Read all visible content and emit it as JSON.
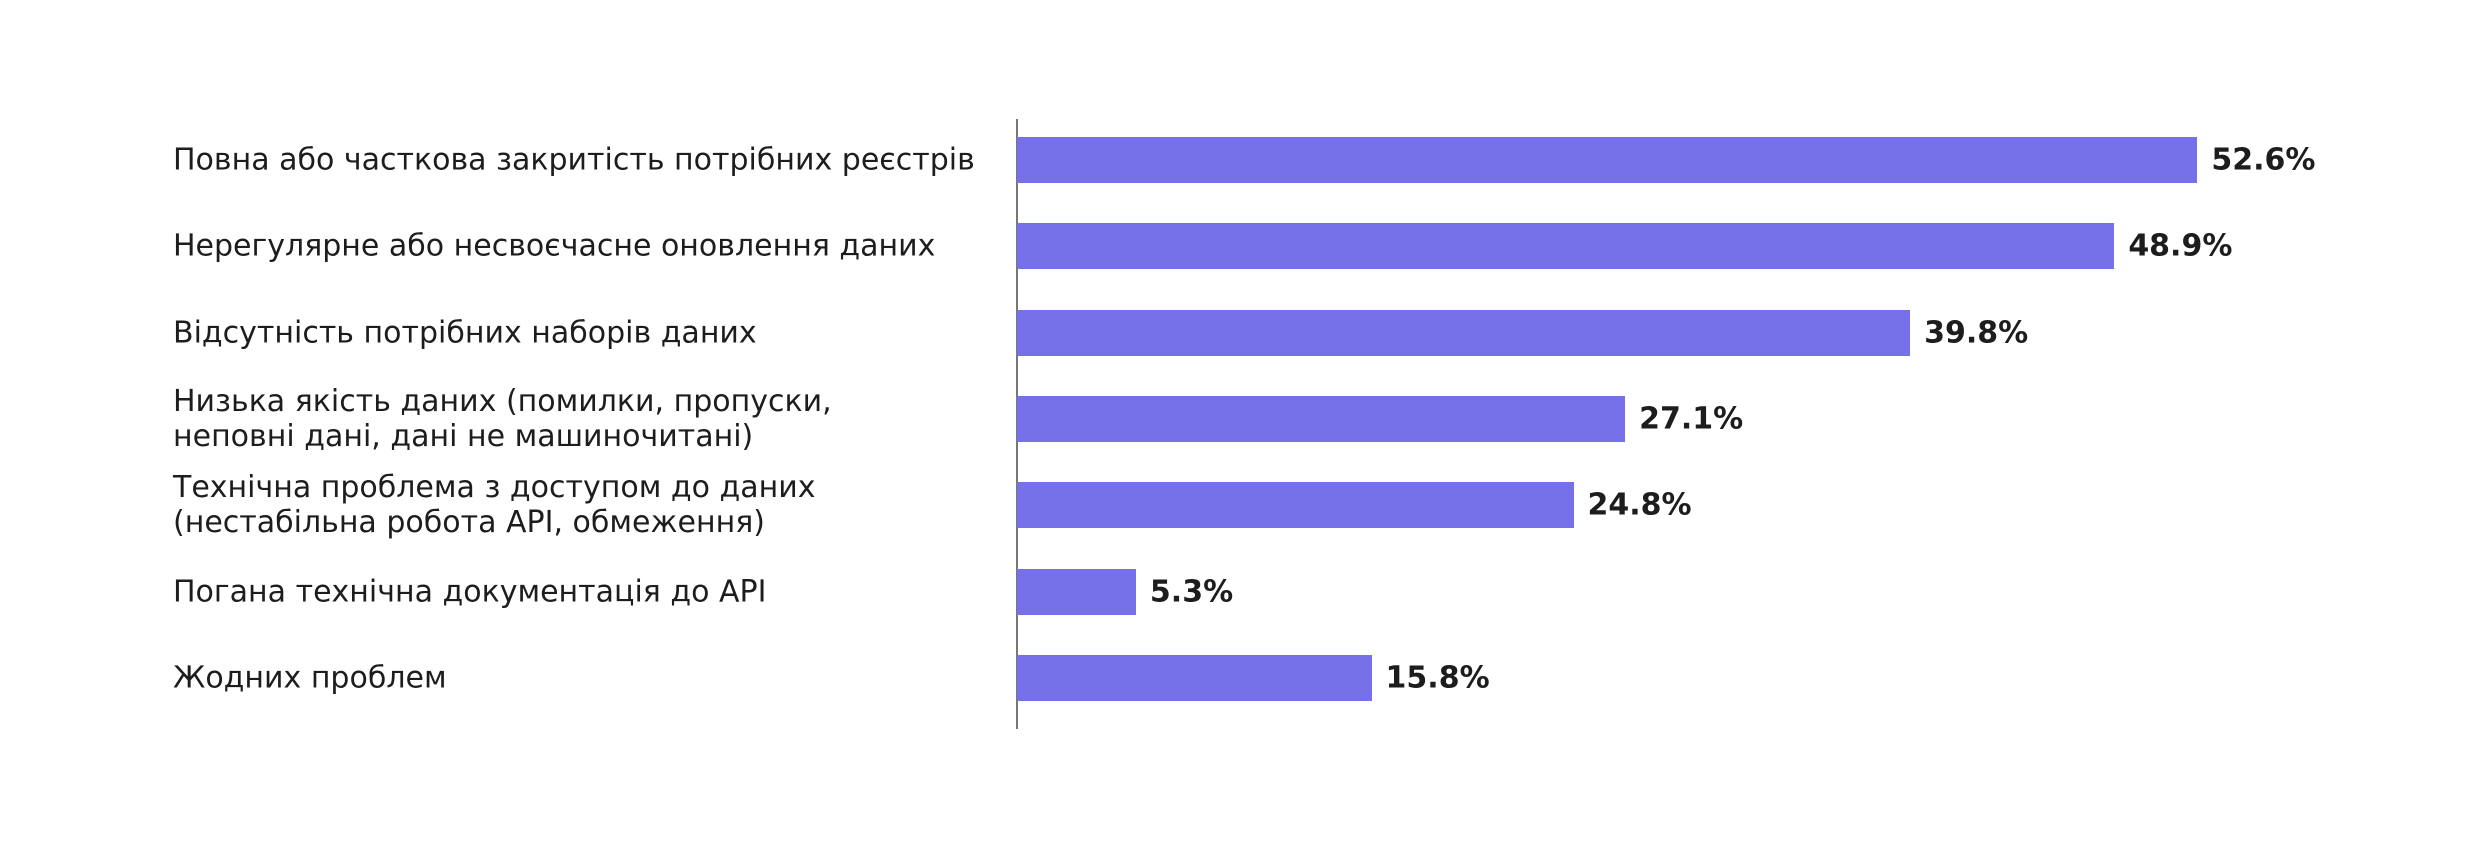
{
  "chart_data": {
    "type": "bar",
    "orientation": "horizontal",
    "color": "#7771e9",
    "categories": [
      "Повна або часткова закритість потрібних реєстрів",
      "Нерегулярне або несвоєчасне оновлення даних",
      "Відсутність потрібних наборів даних",
      "Низька якість даних (помилки, пропуски,\nнеповні дані, дані не машиночитані)",
      "Технічна проблема з доступом до даних\n(нестабільна робота API, обмеження)",
      "Погана технічна документація до API",
      "Жодних проблем"
    ],
    "values": [
      52.6,
      48.9,
      39.8,
      27.1,
      24.8,
      5.3,
      15.8
    ],
    "value_labels": [
      "52.6%",
      "48.9%",
      "39.8%",
      "27.1%",
      "24.8%",
      "5.3%",
      "15.8%"
    ]
  }
}
